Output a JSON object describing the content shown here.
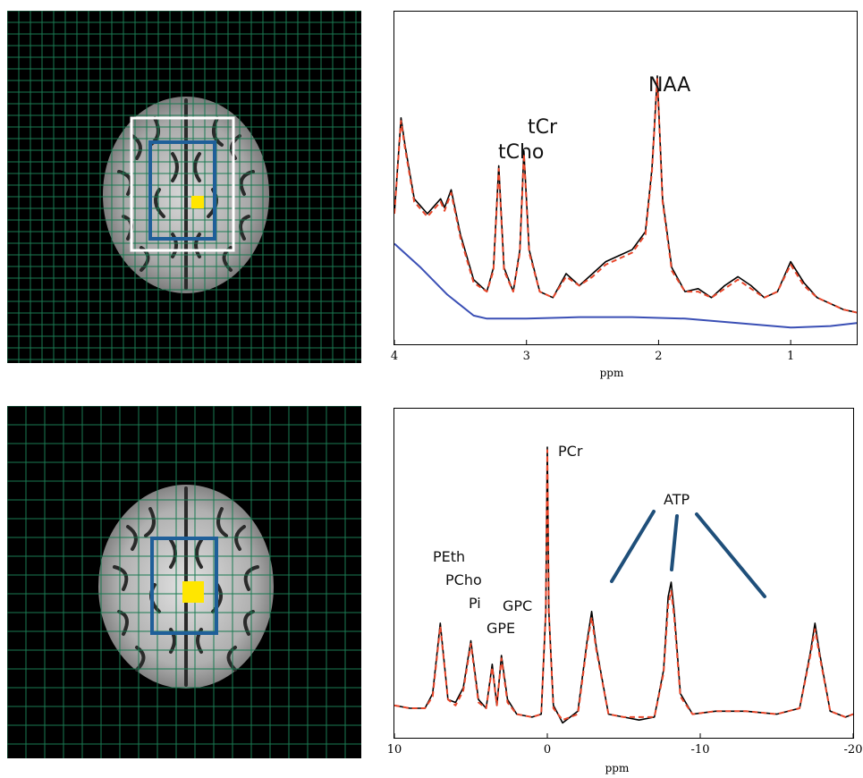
{
  "panels": {
    "mri_top": {
      "voxel_color": "#ffe600",
      "outer_box_color": "#ffffff",
      "inner_box_color": "#1f5f99",
      "grid_color": "#1a7a52"
    },
    "mri_bottom": {
      "voxel_color": "#ffe600",
      "inner_box_color": "#1f5f99",
      "grid_color": "#1a7a52"
    }
  },
  "chart_data": [
    {
      "type": "line",
      "nucleus_panel": "top",
      "xlabel": "ppm",
      "xlim": [
        4,
        0.5
      ],
      "x_ticks": [
        "4",
        "3",
        "2",
        "1"
      ],
      "peak_labels": [
        "NAA",
        "tCr",
        "tCho"
      ],
      "series": [
        {
          "role": "measured",
          "color": "#000000",
          "style": "solid",
          "x": [
            4.0,
            3.95,
            3.92,
            3.85,
            3.75,
            3.65,
            3.62,
            3.57,
            3.5,
            3.4,
            3.3,
            3.25,
            3.21,
            3.17,
            3.1,
            3.05,
            3.02,
            2.98,
            2.9,
            2.8,
            2.7,
            2.6,
            2.5,
            2.4,
            2.3,
            2.2,
            2.1,
            2.05,
            2.01,
            1.97,
            1.9,
            1.8,
            1.7,
            1.6,
            1.5,
            1.4,
            1.3,
            1.2,
            1.1,
            1.0,
            0.9,
            0.8,
            0.7,
            0.6,
            0.5
          ],
          "y": [
            0.4,
            0.72,
            0.63,
            0.45,
            0.4,
            0.45,
            0.42,
            0.48,
            0.33,
            0.18,
            0.14,
            0.22,
            0.56,
            0.22,
            0.14,
            0.28,
            0.61,
            0.28,
            0.14,
            0.12,
            0.2,
            0.16,
            0.2,
            0.24,
            0.26,
            0.28,
            0.34,
            0.55,
            0.86,
            0.45,
            0.22,
            0.14,
            0.15,
            0.12,
            0.16,
            0.19,
            0.16,
            0.12,
            0.14,
            0.24,
            0.17,
            0.12,
            0.1,
            0.08,
            0.07
          ]
        },
        {
          "role": "fit",
          "color": "#e8462a",
          "style": "dashed",
          "x": [
            4.0,
            3.95,
            3.92,
            3.85,
            3.75,
            3.65,
            3.62,
            3.57,
            3.5,
            3.4,
            3.3,
            3.25,
            3.21,
            3.17,
            3.1,
            3.05,
            3.02,
            2.98,
            2.9,
            2.8,
            2.7,
            2.6,
            2.5,
            2.4,
            2.3,
            2.2,
            2.1,
            2.05,
            2.01,
            1.97,
            1.9,
            1.8,
            1.7,
            1.6,
            1.5,
            1.4,
            1.3,
            1.2,
            1.1,
            1.0,
            0.9,
            0.8,
            0.7,
            0.6,
            0.5
          ],
          "y": [
            0.4,
            0.71,
            0.62,
            0.44,
            0.39,
            0.44,
            0.41,
            0.47,
            0.32,
            0.17,
            0.14,
            0.21,
            0.55,
            0.21,
            0.14,
            0.27,
            0.6,
            0.27,
            0.14,
            0.12,
            0.19,
            0.16,
            0.19,
            0.23,
            0.25,
            0.27,
            0.33,
            0.54,
            0.85,
            0.44,
            0.21,
            0.14,
            0.14,
            0.12,
            0.15,
            0.18,
            0.15,
            0.12,
            0.14,
            0.23,
            0.16,
            0.12,
            0.1,
            0.08,
            0.07
          ]
        },
        {
          "role": "baseline",
          "color": "#3a4fb5",
          "style": "solid",
          "x": [
            4.0,
            3.8,
            3.6,
            3.4,
            3.3,
            3.0,
            2.6,
            2.2,
            1.8,
            1.4,
            1.0,
            0.7,
            0.5
          ],
          "y": [
            0.3,
            0.22,
            0.13,
            0.06,
            0.05,
            0.05,
            0.055,
            0.055,
            0.05,
            0.035,
            0.02,
            0.025,
            0.035
          ]
        }
      ]
    },
    {
      "type": "line",
      "nucleus_panel": "bottom",
      "xlabel": "ppm",
      "xlim": [
        10,
        -20
      ],
      "x_ticks": [
        "10",
        "0",
        "-10",
        "-20"
      ],
      "peak_labels": [
        "PCr",
        "ATP",
        "PEth",
        "PCho",
        "Pi",
        "GPC",
        "GPE"
      ],
      "series": [
        {
          "role": "measured",
          "color": "#000000",
          "style": "solid",
          "x": [
            10.0,
            9.0,
            8.0,
            7.5,
            7.0,
            6.5,
            6.0,
            5.5,
            5.0,
            4.5,
            4.0,
            3.6,
            3.3,
            3.0,
            2.6,
            2.0,
            1.0,
            0.4,
            0.1,
            0.0,
            -0.1,
            -0.4,
            -1.0,
            -2.0,
            -2.6,
            -2.9,
            -3.2,
            -4.0,
            -5.0,
            -6.0,
            -7.0,
            -7.6,
            -7.9,
            -8.1,
            -8.3,
            -8.7,
            -9.5,
            -11.0,
            -13.0,
            -15.0,
            -16.5,
            -17.2,
            -17.5,
            -17.8,
            -18.5,
            -19.5,
            -20.0
          ],
          "y": [
            0.08,
            0.07,
            0.07,
            0.12,
            0.36,
            0.1,
            0.09,
            0.14,
            0.3,
            0.1,
            0.07,
            0.22,
            0.08,
            0.25,
            0.1,
            0.05,
            0.04,
            0.05,
            0.4,
            0.96,
            0.4,
            0.08,
            0.02,
            0.06,
            0.3,
            0.4,
            0.28,
            0.05,
            0.04,
            0.03,
            0.04,
            0.2,
            0.45,
            0.5,
            0.4,
            0.12,
            0.05,
            0.06,
            0.06,
            0.05,
            0.07,
            0.26,
            0.36,
            0.26,
            0.06,
            0.04,
            0.05
          ]
        },
        {
          "role": "fit",
          "color": "#e8462a",
          "style": "dashed",
          "x": [
            10.0,
            9.0,
            8.0,
            7.5,
            7.0,
            6.5,
            6.0,
            5.5,
            5.0,
            4.5,
            4.0,
            3.6,
            3.3,
            3.0,
            2.6,
            2.0,
            1.0,
            0.4,
            0.1,
            0.0,
            -0.1,
            -0.4,
            -1.0,
            -2.0,
            -2.6,
            -2.9,
            -3.2,
            -4.0,
            -5.0,
            -6.0,
            -7.0,
            -7.6,
            -7.9,
            -8.1,
            -8.3,
            -8.7,
            -9.5,
            -11.0,
            -13.0,
            -15.0,
            -16.5,
            -17.2,
            -17.5,
            -17.8,
            -18.5,
            -19.5,
            -20.0
          ],
          "y": [
            0.08,
            0.07,
            0.07,
            0.11,
            0.35,
            0.1,
            0.08,
            0.13,
            0.29,
            0.09,
            0.07,
            0.21,
            0.08,
            0.24,
            0.09,
            0.05,
            0.04,
            0.05,
            0.4,
            0.95,
            0.4,
            0.07,
            0.03,
            0.05,
            0.29,
            0.38,
            0.27,
            0.05,
            0.04,
            0.04,
            0.04,
            0.19,
            0.42,
            0.47,
            0.38,
            0.11,
            0.05,
            0.06,
            0.06,
            0.05,
            0.07,
            0.25,
            0.34,
            0.25,
            0.06,
            0.04,
            0.05
          ]
        }
      ]
    }
  ]
}
